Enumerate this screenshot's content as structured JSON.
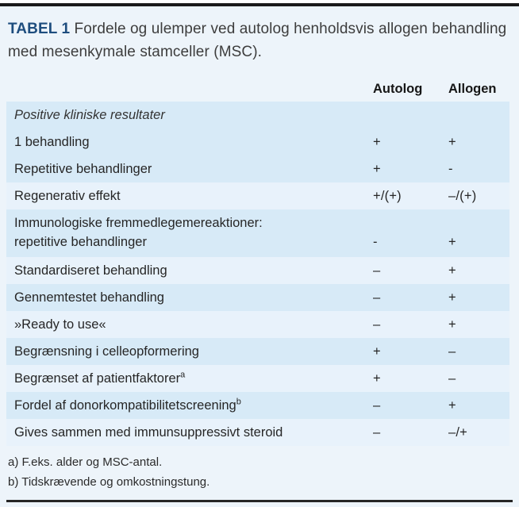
{
  "title": {
    "tag": "TABEL 1",
    "text": "Fordele og ulemper ved autolog henholdsvis allogen behandling med mesenkymale stamceller (MSC)."
  },
  "columns": {
    "autolog": "Autolog",
    "allogen": "Allogen"
  },
  "rows": [
    {
      "label": "Positive kliniske resultater",
      "label2": "",
      "sup": "",
      "autolog": "",
      "allogen": "",
      "shade": "dark",
      "style": "italic"
    },
    {
      "label": "1 behandling",
      "label2": "",
      "sup": "",
      "autolog": "+",
      "allogen": "+",
      "shade": "dark",
      "style": ""
    },
    {
      "label": "Repetitive behandlinger",
      "label2": "",
      "sup": "",
      "autolog": "+",
      "allogen": "-",
      "shade": "dark",
      "style": ""
    },
    {
      "label": "Regenerativ effekt",
      "label2": "",
      "sup": "",
      "autolog": "+/(+)",
      "allogen": "–/(+)",
      "shade": "light",
      "style": ""
    },
    {
      "label": "Immunologiske fremmedlegemereaktioner:",
      "label2": "repetitive behandlinger",
      "sup": "",
      "autolog": "-",
      "allogen": "+",
      "shade": "dark",
      "style": ""
    },
    {
      "label": "Standardiseret behandling",
      "label2": "",
      "sup": "",
      "autolog": "–",
      "allogen": "+",
      "shade": "light",
      "style": ""
    },
    {
      "label": "Gennemtestet behandling",
      "label2": "",
      "sup": "",
      "autolog": "–",
      "allogen": "+",
      "shade": "dark",
      "style": ""
    },
    {
      "label": "»Ready to use«",
      "label2": "",
      "sup": "",
      "autolog": "–",
      "allogen": "+",
      "shade": "light",
      "style": ""
    },
    {
      "label": "Begrænsning i celleopformering",
      "label2": "",
      "sup": "",
      "autolog": "+",
      "allogen": "–",
      "shade": "dark",
      "style": ""
    },
    {
      "label": "Begrænset af patientfaktorer",
      "label2": "",
      "sup": "a",
      "autolog": "+",
      "allogen": "–",
      "shade": "light",
      "style": ""
    },
    {
      "label": "Fordel af donorkompatibilitetscreening",
      "label2": "",
      "sup": "b",
      "autolog": "–",
      "allogen": "+",
      "shade": "dark",
      "style": ""
    },
    {
      "label": "Gives sammen med immunsuppressivt steroid",
      "label2": "",
      "sup": "",
      "autolog": "–",
      "allogen": "–/+",
      "shade": "light",
      "style": ""
    }
  ],
  "footnotes": [
    "a) F.eks. alder og MSC-antal.",
    "b) Tidskrævende og omkostningstung."
  ],
  "colors": {
    "page_bg": "#edf4fa",
    "row_dark": "#d7eaf7",
    "row_light": "#e8f2fb",
    "title_accent": "#1e4d7e",
    "text": "#262626",
    "rule": "#1a1a1a"
  }
}
